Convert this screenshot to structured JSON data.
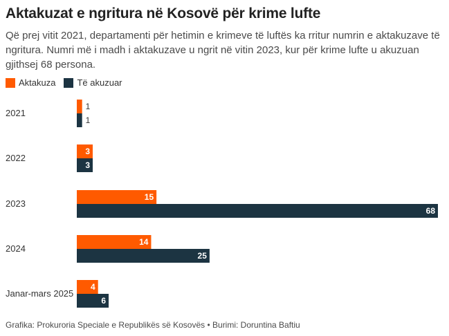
{
  "title": "Aktakuzat e ngritura në Kosovë për krime lufte",
  "subtitle": "Që prej vitit 2021, departamenti për hetimin e krimeve të luftës ka rritur numrin e aktakuzave të ngritura. Numri më i madh i aktakuzave u ngrit në vitin 2023, kur për krime lufte u akuzuan gjithsej 68 persona.",
  "footer": "Grafika: Prokuroria Speciale e Republikës së Kosovës • Burimi: Doruntina Baftiu",
  "chart_data": {
    "type": "bar",
    "orientation": "horizontal",
    "categories": [
      "2021",
      "2022",
      "2023",
      "2024",
      "Janar-mars 2025"
    ],
    "series": [
      {
        "name": "Aktakuza",
        "color": "#ff5a00",
        "values": [
          1,
          3,
          15,
          14,
          4
        ]
      },
      {
        "name": "Të akuzuar",
        "color": "#1c3442",
        "values": [
          1,
          3,
          68,
          25,
          6
        ]
      }
    ],
    "xlim": [
      0,
      68
    ],
    "grid": false,
    "legend": "top-left"
  }
}
